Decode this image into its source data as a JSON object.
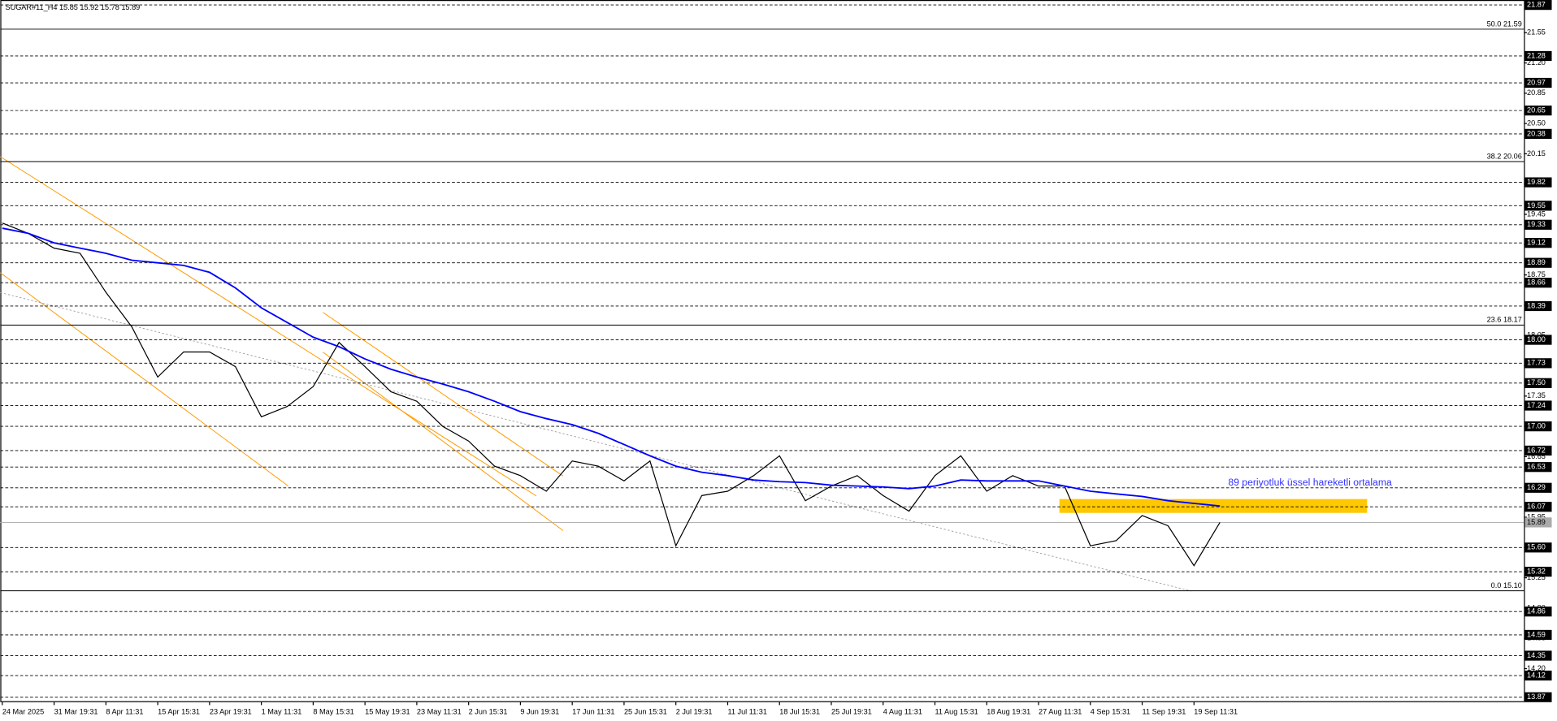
{
  "chart_data": {
    "type": "line",
    "title": "SUGAR#11_H4  15.85 15.92 15.78 15.89",
    "annotation": "89 periyotluk üssel hareketli ortalama",
    "categories": [
      "24 Mar 2025",
      null,
      "31 Mar 19:31",
      null,
      "8 Apr 11:31",
      null,
      "15 Apr 15:31",
      null,
      "23 Apr 19:31",
      null,
      "1 May 11:31",
      null,
      "8 May 15:31",
      null,
      "15 May 19:31",
      null,
      "23 May 11:31",
      null,
      "2 Jun 15:31",
      null,
      "9 Jun 19:31",
      null,
      "17 Jun 11:31",
      null,
      "25 Jun 15:31",
      null,
      "2 Jul 19:31",
      null,
      "11 Jul 11:31",
      null,
      "18 Jul 15:31",
      null,
      "25 Jul 19:31",
      null,
      "4 Aug 11:31",
      null,
      "11 Aug 15:31",
      null,
      "18 Aug 19:31",
      null,
      "27 Aug 11:31",
      null,
      "4 Sep 15:31",
      null,
      "11 Sep 19:31",
      null,
      "19 Sep 11:31",
      null
    ],
    "series": [
      {
        "color": "#000000",
        "values": [
          19.35,
          19.23,
          19.06,
          19.0,
          18.55,
          18.15,
          17.57,
          17.86,
          17.86,
          17.69,
          17.11,
          17.23,
          17.46,
          17.97,
          17.69,
          17.4,
          17.29,
          17.0,
          16.83,
          16.54,
          16.43,
          16.25,
          16.6,
          16.54,
          16.37,
          16.6,
          15.62,
          16.2,
          16.25,
          16.43,
          16.66,
          16.14,
          16.31,
          16.43,
          16.2,
          16.02,
          16.43,
          16.66,
          16.25,
          16.43,
          16.31,
          16.31,
          15.62,
          15.68,
          15.97,
          15.85,
          15.39,
          15.89
        ]
      },
      {
        "color": "#0000ff",
        "values": [
          19.29,
          19.23,
          19.12,
          19.06,
          19.0,
          18.92,
          18.89,
          18.86,
          18.78,
          18.6,
          18.37,
          18.2,
          18.03,
          17.92,
          17.78,
          17.66,
          17.57,
          17.49,
          17.4,
          17.29,
          17.17,
          17.09,
          17.02,
          16.92,
          16.79,
          16.66,
          16.54,
          16.47,
          16.43,
          16.38,
          16.36,
          16.35,
          16.32,
          16.31,
          16.3,
          16.28,
          16.31,
          16.38,
          16.37,
          16.37,
          16.37,
          16.31,
          16.25,
          16.22,
          16.19,
          16.14,
          16.11,
          16.08
        ]
      }
    ],
    "ylim": [
      13.87,
      21.87
    ],
    "yticks": [
      21.55,
      {
        "value": 21.2,
        "label": "21.20"
      },
      20.85,
      {
        "value": 20.5,
        "label": "20.50"
      },
      20.15,
      {
        "value": 19.8,
        "label": "19.80"
      },
      19.45,
      {
        "value": 19.1,
        "label": "19.10"
      },
      18.75,
      {
        "value": 18.4,
        "label": "18.40"
      },
      18.05,
      {
        "value": 17.7,
        "label": "17.70"
      },
      17.35,
      {
        "value": 17.0,
        "label": "17.00"
      },
      16.65,
      {
        "value": 16.3,
        "label": "16.30"
      },
      15.95,
      {
        "value": 15.6,
        "label": "15.60"
      },
      15.25,
      {
        "value": 14.9,
        "label": "14.90"
      },
      14.55,
      {
        "value": 14.2,
        "label": "14.20"
      }
    ],
    "levels": [
      21.87,
      21.28,
      20.97,
      20.65,
      20.38,
      19.82,
      19.55,
      19.33,
      19.12,
      18.89,
      18.66,
      18.39,
      {
        "value": 18.0,
        "label": "18.00"
      },
      17.73,
      {
        "value": 17.5,
        "label": "17.50"
      },
      17.24,
      {
        "value": 17.0,
        "label": "17.00"
      },
      16.72,
      16.53,
      16.29,
      16.07,
      {
        "value": 15.6,
        "label": "15.60"
      },
      15.32,
      14.86,
      14.59,
      14.35,
      14.12,
      13.87
    ],
    "fib_levels": [
      {
        "value": 21.59,
        "label": "50.0 21.59"
      },
      {
        "value": 20.06,
        "label": "38.2 20.06"
      },
      {
        "value": 18.17,
        "label": "23.6 18.17"
      },
      {
        "value": 15.1,
        "label": "0.0 15.10"
      }
    ],
    "current_price": 15.89,
    "zone": [
      16.0,
      16.16
    ],
    "zone_color": "#ffc800"
  }
}
